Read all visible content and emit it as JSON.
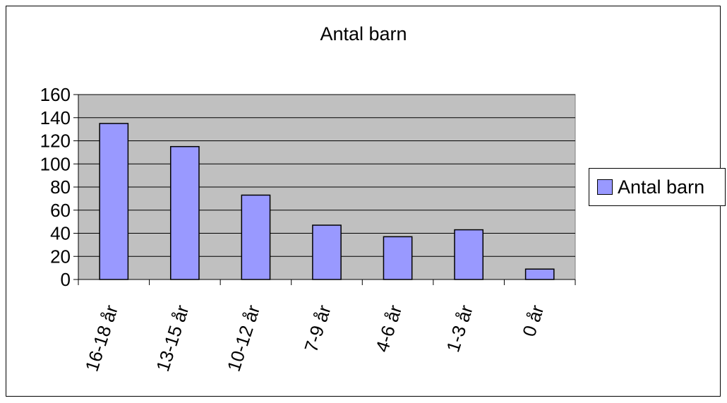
{
  "chart_data": {
    "type": "bar",
    "title": "Antal barn",
    "xlabel": "",
    "ylabel": "",
    "categories": [
      "16-18 år",
      "13-15 år",
      "10-12 år",
      "7-9 år",
      "4-6 år",
      "1-3 år",
      "0 år"
    ],
    "series": [
      {
        "name": "Antal barn",
        "values": [
          135,
          115,
          73,
          47,
          37,
          43,
          9
        ]
      }
    ],
    "ylim": [
      0,
      160
    ],
    "yticks": [
      0,
      20,
      40,
      60,
      80,
      100,
      120,
      140,
      160
    ],
    "grid": true,
    "legend": "right",
    "colors": {
      "bar_fill": "#9999ff",
      "plot_background": "#c0c0c0",
      "gridline": "#000000"
    }
  }
}
